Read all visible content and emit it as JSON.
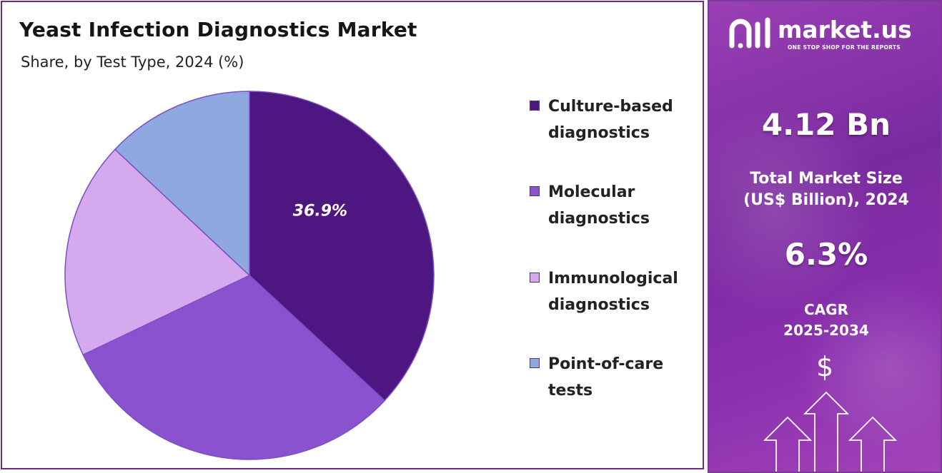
{
  "chart": {
    "title": "Yeast Infection Diagnostics Market",
    "subtitle": "Share, by Test Type, 2024 (%)"
  },
  "chart_data": {
    "type": "pie",
    "title": "Yeast Infection Diagnostics Market",
    "subtitle": "Share, by Test Type, 2024 (%)",
    "categories": [
      "Culture-based diagnostics",
      "Molecular diagnostics",
      "Immunological diagnostics",
      "Point-of-care tests"
    ],
    "values": [
      36.9,
      31.0,
      19.1,
      13.0
    ],
    "colors": [
      "#4e1681",
      "#8b52d0",
      "#d4a9ee",
      "#8fa8df"
    ],
    "data_labels": [
      "36.9%"
    ],
    "legend_position": "right"
  },
  "legend": {
    "items": [
      {
        "label": "Culture-based diagnostics",
        "color": "#4e1681"
      },
      {
        "label": "Molecular diagnostics",
        "color": "#8b52d0"
      },
      {
        "label": "Immunological diagnostics",
        "color": "#d4a9ee"
      },
      {
        "label": "Point-of-care tests",
        "color": "#8fa8df"
      }
    ]
  },
  "panel": {
    "brand_name": "market.us",
    "brand_tagline": "ONE STOP SHOP FOR THE REPORTS",
    "market_size_value": "4.12 Bn",
    "market_size_label_line1": "Total Market Size",
    "market_size_label_line2": "(US$ Billion), 2024",
    "cagr_value": "6.3%",
    "cagr_label_line1": "CAGR",
    "cagr_label_line2": "2025-2034",
    "dollar_symbol": "$",
    "icons": [
      "logo-icon",
      "dollar-icon",
      "up-arrow-icon"
    ]
  }
}
